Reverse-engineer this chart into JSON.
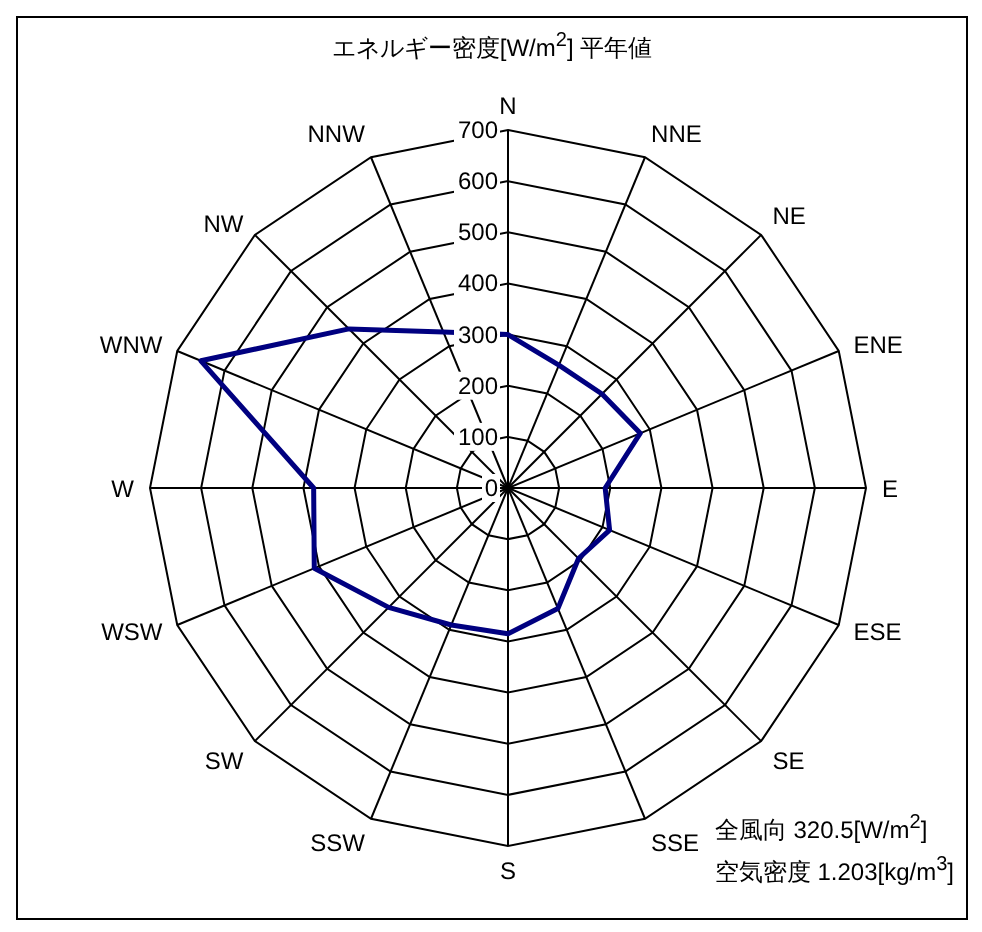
{
  "chart_data": {
    "type": "radar",
    "title": "エネルギー密度[W/m$^{2}$] 平年値",
    "categories": [
      "N",
      "NNE",
      "NE",
      "ENE",
      "E",
      "ESE",
      "SE",
      "SSE",
      "S",
      "SSW",
      "SW",
      "WSW",
      "W",
      "WNW",
      "NW",
      "NNW"
    ],
    "series": [
      {
        "color": "#000080",
        "values": [
          300,
          260,
          260,
          280,
          190,
          215,
          195,
          255,
          285,
          290,
          330,
          410,
          380,
          650,
          440,
          330
        ]
      }
    ],
    "ylim": [
      0,
      700
    ],
    "yticks": [
      0,
      100,
      200,
      300,
      400,
      500,
      600,
      700
    ],
    "grid": true,
    "legend": false,
    "marker": "none",
    "annotations": [
      "全風向  320.5[W/m$^{2}$]",
      "空気密度 1.203[kg/m$^{3}$]"
    ]
  }
}
